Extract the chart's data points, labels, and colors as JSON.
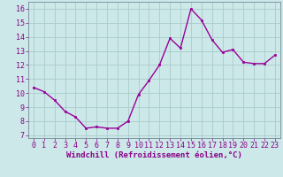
{
  "x": [
    0,
    1,
    2,
    3,
    4,
    5,
    6,
    7,
    8,
    9,
    10,
    11,
    12,
    13,
    14,
    15,
    16,
    17,
    18,
    19,
    20,
    21,
    22,
    23
  ],
  "y": [
    10.4,
    10.1,
    9.5,
    8.7,
    8.3,
    7.5,
    7.6,
    7.5,
    7.5,
    8.0,
    9.9,
    10.9,
    12.0,
    13.9,
    13.2,
    16.0,
    15.2,
    13.8,
    12.9,
    13.1,
    12.2,
    12.1,
    12.1,
    12.7
  ],
  "line_color": "#990099",
  "marker": "s",
  "marker_size": 2.0,
  "bg_color": "#cce8e8",
  "grid_color": "#aacccc",
  "xlabel": "Windchill (Refroidissement éolien,°C)",
  "xlabel_fontsize": 6.5,
  "yticks": [
    7,
    8,
    9,
    10,
    11,
    12,
    13,
    14,
    15,
    16
  ],
  "xticks": [
    0,
    1,
    2,
    3,
    4,
    5,
    6,
    7,
    8,
    9,
    10,
    11,
    12,
    13,
    14,
    15,
    16,
    17,
    18,
    19,
    20,
    21,
    22,
    23
  ],
  "ylim": [
    6.8,
    16.5
  ],
  "xlim": [
    -0.5,
    23.5
  ],
  "tick_fontsize": 6.0,
  "line_width": 1.0,
  "text_color": "#880088"
}
